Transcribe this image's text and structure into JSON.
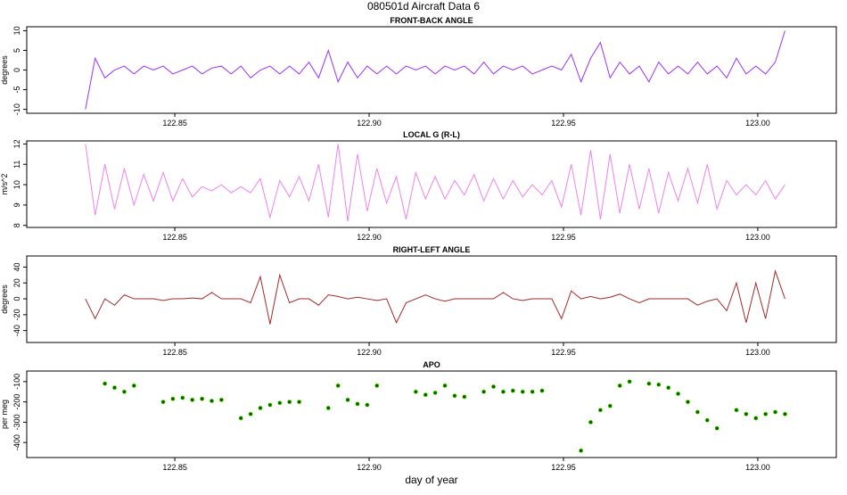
{
  "title": "080501d   Aircraft Data 6",
  "chart_data": [
    {
      "type": "line",
      "title": "FRONT-BACK ANGLE",
      "ylabel": "degrees",
      "xlim": [
        122.8119,
        123.0202
      ],
      "ylim": [
        -11,
        11
      ],
      "xticks": [
        {
          "value": 122.85,
          "label": "122.85"
        },
        {
          "value": 122.9,
          "label": "122.90"
        },
        {
          "value": 122.95,
          "label": "122.95"
        },
        {
          "value": 123.0,
          "label": "123.00"
        }
      ],
      "yticks": [
        -10,
        -5,
        0,
        5,
        10
      ],
      "x": [
        122.827,
        122.8295,
        122.832,
        122.8345,
        122.837,
        122.8395,
        122.842,
        122.8445,
        122.847,
        122.8495,
        122.852,
        122.8545,
        122.857,
        122.8595,
        122.862,
        122.8645,
        122.867,
        122.8695,
        122.872,
        122.8745,
        122.877,
        122.8795,
        122.882,
        122.8845,
        122.887,
        122.8895,
        122.892,
        122.8945,
        122.897,
        122.8995,
        122.902,
        122.9045,
        122.907,
        122.9095,
        122.912,
        122.9145,
        122.917,
        122.9195,
        122.922,
        122.9245,
        122.927,
        122.9295,
        122.932,
        122.9345,
        122.937,
        122.9395,
        122.942,
        122.9445,
        122.947,
        122.9495,
        122.952,
        122.9545,
        122.957,
        122.9595,
        122.962,
        122.9645,
        122.967,
        122.9695,
        122.972,
        122.9745,
        122.977,
        122.9795,
        122.982,
        122.9845,
        122.987,
        122.9895,
        122.992,
        122.9945,
        122.997,
        122.9995,
        123.002,
        123.0045,
        123.007
      ],
      "series": [
        {
          "color": "#9b30ff",
          "values": [
            -10,
            3,
            -2,
            0,
            1,
            -1,
            1,
            0,
            1,
            -1,
            0,
            1,
            -1,
            0.5,
            1,
            -1,
            1,
            -2,
            0,
            1,
            -1,
            1,
            -1,
            2,
            -2,
            5,
            -3,
            2,
            -2,
            1,
            -1,
            1,
            -1,
            1,
            0,
            1,
            -1,
            1,
            0,
            1,
            -1,
            2,
            -1,
            1,
            0,
            1,
            -1,
            0,
            1,
            0,
            4,
            -3,
            3,
            7,
            -2,
            2,
            -1,
            1,
            -3,
            2,
            -1,
            1,
            -1,
            2,
            -1,
            1,
            -2,
            3,
            -1,
            1,
            -1,
            2,
            10
          ]
        }
      ]
    },
    {
      "type": "line",
      "title": "LOCAL G (R-L)",
      "ylabel": "m/s^2",
      "xlim": [
        122.8119,
        123.0202
      ],
      "ylim": [
        7.9,
        12.15
      ],
      "xticks": [
        {
          "value": 122.85,
          "label": "122.85"
        },
        {
          "value": 122.9,
          "label": "122.90"
        },
        {
          "value": 122.95,
          "label": "122.95"
        },
        {
          "value": 123.0,
          "label": "123.00"
        }
      ],
      "yticks": [
        8,
        9,
        10,
        11,
        12
      ],
      "x": [
        122.827,
        122.8295,
        122.832,
        122.8345,
        122.837,
        122.8395,
        122.842,
        122.8445,
        122.847,
        122.8495,
        122.852,
        122.8545,
        122.857,
        122.8595,
        122.862,
        122.8645,
        122.867,
        122.8695,
        122.872,
        122.8745,
        122.877,
        122.8795,
        122.882,
        122.8845,
        122.887,
        122.8895,
        122.892,
        122.8945,
        122.897,
        122.8995,
        122.902,
        122.9045,
        122.907,
        122.9095,
        122.912,
        122.9145,
        122.917,
        122.9195,
        122.922,
        122.9245,
        122.927,
        122.9295,
        122.932,
        122.9345,
        122.937,
        122.9395,
        122.942,
        122.9445,
        122.947,
        122.9495,
        122.952,
        122.9545,
        122.957,
        122.9595,
        122.962,
        122.9645,
        122.967,
        122.9695,
        122.972,
        122.9745,
        122.977,
        122.9795,
        122.982,
        122.9845,
        122.987,
        122.9895,
        122.992,
        122.9945,
        122.997,
        122.9995,
        123.002,
        123.0045,
        123.007
      ],
      "series": [
        {
          "color": "#ee82ee",
          "values": [
            12,
            8.5,
            11,
            8.8,
            10.8,
            9.0,
            10.5,
            9.2,
            10.6,
            9.2,
            10.3,
            9.4,
            9.9,
            9.7,
            10,
            9.6,
            9.9,
            9.6,
            10.3,
            8.4,
            10.2,
            9.4,
            10.4,
            9.2,
            11,
            8.4,
            12,
            8.2,
            11.5,
            8.7,
            10.8,
            9.1,
            10.4,
            8.3,
            10.6,
            9.3,
            10.4,
            9.3,
            10.2,
            9.5,
            10.5,
            9.2,
            10.3,
            9.3,
            10.2,
            9.4,
            10.0,
            9.5,
            10.2,
            8.9,
            11,
            8.5,
            11.7,
            8.3,
            11.5,
            8.6,
            11,
            8.8,
            10.8,
            8.6,
            10.6,
            9.2,
            10.8,
            9.1,
            11,
            8.8,
            10.2,
            9.5,
            10,
            9.5,
            10.2,
            9.3,
            10
          ]
        }
      ]
    },
    {
      "type": "line",
      "title": "RIGHT-LEFT ANGLE",
      "ylabel": "degrees",
      "xlim": [
        122.8119,
        123.0202
      ],
      "ylim": [
        -55,
        54
      ],
      "xticks": [
        {
          "value": 122.85,
          "label": "122.85"
        },
        {
          "value": 122.9,
          "label": "122.90"
        },
        {
          "value": 122.95,
          "label": "122.95"
        },
        {
          "value": 123.0,
          "label": "123.00"
        }
      ],
      "yticks": [
        -40,
        -20,
        0,
        20,
        40
      ],
      "x": [
        122.827,
        122.8295,
        122.832,
        122.8345,
        122.837,
        122.8395,
        122.842,
        122.8445,
        122.847,
        122.8495,
        122.852,
        122.8545,
        122.857,
        122.8595,
        122.862,
        122.8645,
        122.867,
        122.8695,
        122.872,
        122.8745,
        122.877,
        122.8795,
        122.882,
        122.8845,
        122.887,
        122.8895,
        122.892,
        122.8945,
        122.897,
        122.8995,
        122.902,
        122.9045,
        122.907,
        122.9095,
        122.912,
        122.9145,
        122.917,
        122.9195,
        122.922,
        122.9245,
        122.927,
        122.9295,
        122.932,
        122.9345,
        122.937,
        122.9395,
        122.942,
        122.9445,
        122.947,
        122.9495,
        122.952,
        122.9545,
        122.957,
        122.9595,
        122.962,
        122.9645,
        122.967,
        122.9695,
        122.972,
        122.9745,
        122.977,
        122.9795,
        122.982,
        122.9845,
        122.987,
        122.9895,
        122.992,
        122.9945,
        122.997,
        122.9995,
        123.002,
        123.0045,
        123.007
      ],
      "series": [
        {
          "color": "#a52a2a",
          "values": [
            0,
            -25,
            0,
            -8,
            5,
            0,
            0,
            0,
            -2,
            0,
            0,
            1,
            0,
            8,
            0,
            0,
            0,
            -5,
            28,
            -32,
            30,
            -5,
            0,
            0,
            -8,
            5,
            3,
            0,
            2,
            0,
            -2,
            0,
            -30,
            -5,
            0,
            5,
            0,
            -3,
            0,
            0,
            0,
            0,
            0,
            8,
            0,
            -2,
            0,
            0,
            0,
            -25,
            10,
            0,
            3,
            0,
            2,
            6,
            0,
            -5,
            0,
            0,
            0,
            0,
            0,
            -8,
            -3,
            0,
            -15,
            20,
            -30,
            20,
            -25,
            35,
            0
          ]
        }
      ]
    },
    {
      "type": "scatter",
      "title": "APO",
      "ylabel": "per meg",
      "xlabel": "day of year",
      "xlim": [
        122.8119,
        123.0202
      ],
      "ylim": [
        -474,
        -48
      ],
      "xticks": [
        {
          "value": 122.85,
          "label": "122.85"
        },
        {
          "value": 122.9,
          "label": "122.90"
        },
        {
          "value": 122.95,
          "label": "122.95"
        },
        {
          "value": 123.0,
          "label": "123.00"
        }
      ],
      "yticks": [
        -400,
        -300,
        -200,
        -100
      ],
      "x": [
        122.827,
        122.8295,
        122.832,
        122.8345,
        122.837,
        122.8395,
        122.842,
        122.8445,
        122.847,
        122.8495,
        122.852,
        122.8545,
        122.857,
        122.8595,
        122.862,
        122.8645,
        122.867,
        122.8695,
        122.872,
        122.8745,
        122.877,
        122.8795,
        122.882,
        122.8845,
        122.887,
        122.8895,
        122.892,
        122.8945,
        122.897,
        122.8995,
        122.902,
        122.9045,
        122.907,
        122.9095,
        122.912,
        122.9145,
        122.917,
        122.9195,
        122.922,
        122.9245,
        122.927,
        122.9295,
        122.932,
        122.9345,
        122.937,
        122.9395,
        122.942,
        122.9445,
        122.947,
        122.9495,
        122.952,
        122.9545,
        122.957,
        122.9595,
        122.962,
        122.9645,
        122.967,
        122.9695,
        122.972,
        122.9745,
        122.977,
        122.9795,
        122.982,
        122.9845,
        122.987,
        122.9895,
        122.992,
        122.9945,
        122.997,
        122.9995,
        123.002,
        123.0045,
        123.007
      ],
      "series": [
        {
          "color": "#006400",
          "values": [
            null,
            null,
            -110,
            -130,
            -150,
            -120,
            null,
            null,
            -200,
            -185,
            -180,
            -190,
            -185,
            -195,
            -190,
            null,
            -280,
            -260,
            -230,
            -215,
            -205,
            -200,
            -200,
            null,
            null,
            -230,
            -120,
            -190,
            -210,
            -215,
            -120,
            null,
            null,
            null,
            -150,
            -165,
            -155,
            -120,
            -170,
            -175,
            null,
            -150,
            -125,
            -150,
            -145,
            -150,
            -150,
            -145,
            null,
            null,
            null,
            -440,
            -300,
            -240,
            -220,
            -120,
            -100,
            null,
            -110,
            -115,
            -130,
            -160,
            -200,
            -250,
            -290,
            -330,
            null,
            -240,
            -260,
            -280,
            -260,
            -250,
            -260
          ]
        }
      ]
    }
  ]
}
